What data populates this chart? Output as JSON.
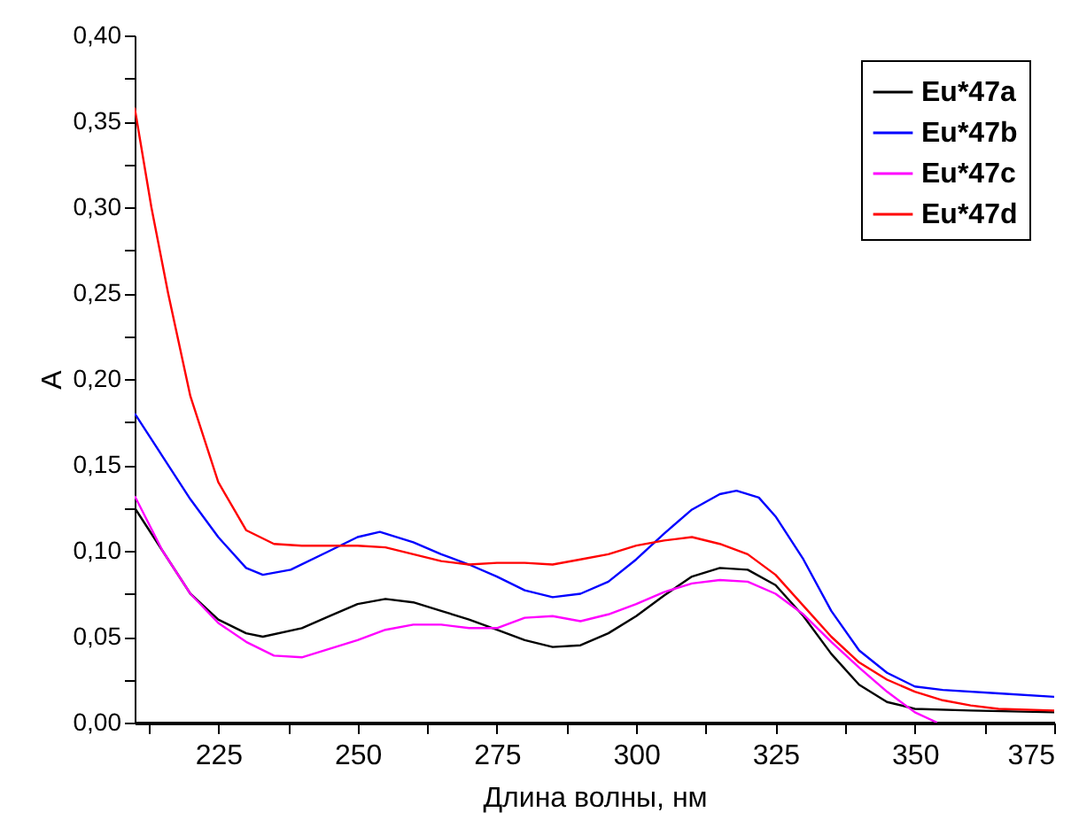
{
  "chart_data": {
    "type": "line",
    "xlabel": "Длина волны, нм",
    "ylabel": "A",
    "legend": "top right",
    "xlim": [
      210,
      375
    ],
    "ylim": [
      0,
      0.4
    ],
    "xticks": [
      {
        "value": 212.5,
        "label": null
      },
      225,
      {
        "value": 237.5,
        "label": null
      },
      250,
      {
        "value": 262.5,
        "label": null
      },
      275,
      {
        "value": 287.5,
        "label": null
      },
      300,
      {
        "value": 312.5,
        "label": null
      },
      325,
      {
        "value": 337.5,
        "label": null
      },
      350,
      {
        "value": 362.5,
        "label": null
      },
      375
    ],
    "yticks": [
      {
        "value": 0,
        "label": "0,00"
      },
      {
        "value": 0.025,
        "label": null
      },
      {
        "value": 0.05,
        "label": "0,05"
      },
      {
        "value": 0.075,
        "label": null
      },
      {
        "value": 0.1,
        "label": "0,10"
      },
      {
        "value": 0.125,
        "label": null
      },
      {
        "value": 0.15,
        "label": "0,15"
      },
      {
        "value": 0.175,
        "label": null
      },
      {
        "value": 0.2,
        "label": "0,20"
      },
      {
        "value": 0.225,
        "label": null
      },
      {
        "value": 0.25,
        "label": "0,25"
      },
      {
        "value": 0.275,
        "label": null
      },
      {
        "value": 0.3,
        "label": "0,30"
      },
      {
        "value": 0.325,
        "label": null
      },
      {
        "value": 0.35,
        "label": "0,35"
      },
      {
        "value": 0.375,
        "label": null
      },
      {
        "value": 0.4,
        "label": "0,40"
      }
    ],
    "series": [
      {
        "name": "Eu*47a",
        "color": "#000000",
        "x": [
          210,
          215,
          220,
          225,
          230,
          233,
          240,
          245,
          250,
          255,
          260,
          265,
          270,
          275,
          280,
          285,
          290,
          295,
          300,
          305,
          310,
          315,
          320,
          325,
          330,
          335,
          340,
          345,
          350,
          360,
          375
        ],
        "values": [
          0.125,
          0.1,
          0.075,
          0.06,
          0.052,
          0.05,
          0.055,
          0.062,
          0.069,
          0.072,
          0.07,
          0.065,
          0.06,
          0.054,
          0.048,
          0.044,
          0.045,
          0.052,
          0.062,
          0.074,
          0.085,
          0.09,
          0.089,
          0.08,
          0.062,
          0.04,
          0.022,
          0.012,
          0.008,
          0.007,
          0.006
        ]
      },
      {
        "name": "Eu*47b",
        "color": "#0000ff",
        "x": [
          210,
          215,
          220,
          225,
          230,
          233,
          238,
          245,
          250,
          254,
          260,
          265,
          270,
          275,
          280,
          285,
          290,
          295,
          300,
          305,
          310,
          315,
          318,
          322,
          325,
          330,
          335,
          340,
          345,
          350,
          355,
          365,
          375
        ],
        "values": [
          0.18,
          0.155,
          0.13,
          0.108,
          0.09,
          0.086,
          0.089,
          0.1,
          0.108,
          0.111,
          0.105,
          0.098,
          0.092,
          0.085,
          0.077,
          0.073,
          0.075,
          0.082,
          0.095,
          0.11,
          0.124,
          0.133,
          0.135,
          0.131,
          0.12,
          0.095,
          0.065,
          0.042,
          0.029,
          0.021,
          0.019,
          0.017,
          0.015
        ]
      },
      {
        "name": "Eu*47c",
        "color": "#ff00ff",
        "x": [
          210,
          215,
          220,
          225,
          230,
          235,
          240,
          245,
          250,
          255,
          260,
          265,
          270,
          275,
          280,
          285,
          290,
          295,
          300,
          305,
          310,
          315,
          320,
          325,
          330,
          335,
          340,
          345,
          350,
          354
        ],
        "values": [
          0.132,
          0.1,
          0.075,
          0.058,
          0.047,
          0.039,
          0.038,
          0.043,
          0.048,
          0.054,
          0.057,
          0.057,
          0.055,
          0.055,
          0.061,
          0.062,
          0.059,
          0.063,
          0.069,
          0.076,
          0.081,
          0.083,
          0.082,
          0.075,
          0.063,
          0.047,
          0.032,
          0.018,
          0.006,
          0
        ]
      },
      {
        "name": "Eu*47d",
        "color": "#ff0000",
        "x": [
          210,
          213,
          216,
          220,
          225,
          230,
          235,
          240,
          245,
          250,
          255,
          260,
          265,
          270,
          275,
          280,
          285,
          290,
          295,
          300,
          305,
          310,
          315,
          320,
          325,
          330,
          335,
          340,
          345,
          350,
          355,
          360,
          365,
          375
        ],
        "values": [
          0.358,
          0.3,
          0.25,
          0.19,
          0.14,
          0.112,
          0.104,
          0.103,
          0.103,
          0.103,
          0.102,
          0.098,
          0.094,
          0.092,
          0.093,
          0.093,
          0.092,
          0.095,
          0.098,
          0.103,
          0.106,
          0.108,
          0.104,
          0.098,
          0.086,
          0.068,
          0.05,
          0.035,
          0.025,
          0.018,
          0.013,
          0.01,
          0.008,
          0.007
        ]
      }
    ]
  }
}
